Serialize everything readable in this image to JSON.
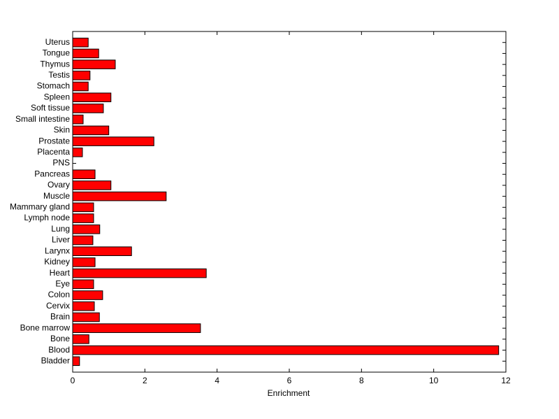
{
  "chart_data": {
    "type": "barh",
    "xlabel": "Enrichment",
    "categories": [
      "Bladder",
      "Blood",
      "Bone",
      "Bone marrow",
      "Brain",
      "Cervix",
      "Colon",
      "Eye",
      "Heart",
      "Kidney",
      "Larynx",
      "Liver",
      "Lung",
      "Lymph node",
      "Mammary gland",
      "Muscle",
      "Ovary",
      "Pancreas",
      "PNS",
      "Placenta",
      "Prostate",
      "Skin",
      "Small intestine",
      "Soft tissue",
      "Spleen",
      "Stomach",
      "Testis",
      "Thymus",
      "Tongue",
      "Uterus"
    ],
    "values": [
      0.19,
      11.8,
      0.45,
      3.54,
      0.74,
      0.6,
      0.83,
      0.58,
      3.7,
      0.62,
      1.63,
      0.56,
      0.75,
      0.58,
      0.58,
      2.59,
      1.06,
      0.62,
      0,
      0.27,
      2.25,
      1.0,
      0.29,
      0.85,
      1.06,
      0.43,
      0.48,
      1.18,
      0.72,
      0.43
    ],
    "color": "#ff0000",
    "xlim": [
      0,
      12
    ],
    "xticks": [
      0,
      2,
      4,
      6,
      8,
      10,
      12
    ]
  }
}
